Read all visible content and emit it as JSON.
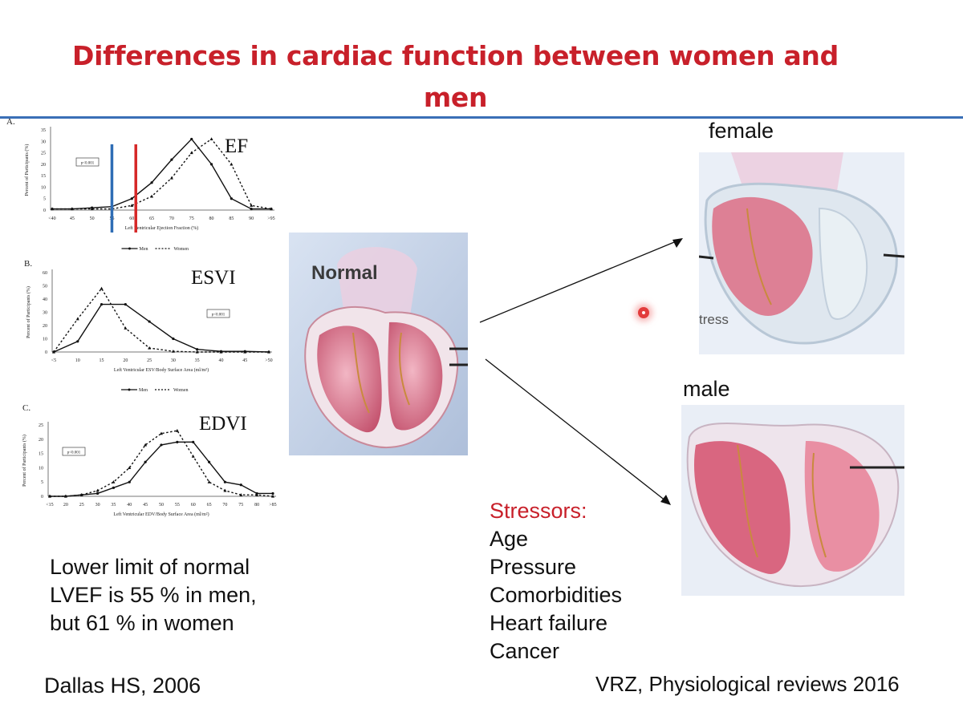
{
  "slide": {
    "title_line1": "Differences in cardiac function between women and",
    "title_line2": "men",
    "note_lines": [
      "Lower limit of normal",
      "LVEF is 55 % in men,",
      "but 61 % in women"
    ],
    "citation_left": "Dallas HS, 2006",
    "citation_right": "VRZ, Physiological reviews 2016",
    "stressors_title": "Stressors:",
    "stressors": [
      "Age",
      "Pressure",
      "Comorbidities",
      "Heart failure",
      "Cancer"
    ],
    "heart_center_label": "Normal",
    "female_label": "female",
    "male_label": "male",
    "female_fragment": "tress"
  },
  "chart_data": [
    {
      "type": "line",
      "panel": "A.",
      "big_label": "EF",
      "xlabel": "Left Ventricular Ejection Fraction (%)",
      "ylabel": "Percent of Participants (%)",
      "categories": [
        "<40",
        "45",
        "50",
        "55",
        "60",
        "65",
        "70",
        "75",
        "80",
        "85",
        "90",
        ">95"
      ],
      "ylim": [
        0,
        35
      ],
      "yticks": [
        "0",
        "5",
        "10",
        "15",
        "20",
        "25",
        "30",
        "35"
      ],
      "pvalue": "p<0.001",
      "legend": [
        "Men",
        "Women"
      ],
      "series": [
        {
          "name": "Men",
          "values": [
            0.5,
            0.5,
            1,
            1.5,
            5,
            12,
            22,
            31,
            20,
            5,
            0.5,
            0.5
          ]
        },
        {
          "name": "Women",
          "values": [
            0.5,
            0.5,
            0.5,
            0.5,
            2,
            6,
            14,
            25,
            31,
            20,
            2,
            0.5
          ]
        }
      ],
      "markers": [
        {
          "value": "55",
          "color": "#2f6db5"
        },
        {
          "value": "61",
          "color": "#d62828"
        }
      ]
    },
    {
      "type": "line",
      "panel": "B.",
      "big_label": "ESVI",
      "xlabel": "Left Ventricular ESV/Body Surface Area (ml/m²)",
      "ylabel": "Percent of Participants (%)",
      "categories": [
        "<5",
        "10",
        "15",
        "20",
        "25",
        "30",
        "35",
        "40",
        "45",
        ">50"
      ],
      "ylim": [
        0,
        60
      ],
      "yticks": [
        "0",
        "10",
        "20",
        "30",
        "40",
        "50",
        "60"
      ],
      "pvalue": "p<0.001",
      "legend": [
        "Men",
        "Women"
      ],
      "series": [
        {
          "name": "Men",
          "values": [
            0,
            8,
            36,
            36,
            23,
            10,
            2,
            0.5,
            0.5,
            0
          ]
        },
        {
          "name": "Women",
          "values": [
            0,
            25,
            48,
            18,
            3,
            0.5,
            0,
            0,
            0,
            0
          ]
        }
      ]
    },
    {
      "type": "line",
      "panel": "C.",
      "big_label": "EDVI",
      "xlabel": "Left Ventricular EDV/Body Surface Area (ml/m²)",
      "ylabel": "Percent of Participants (%)",
      "categories": [
        "<15",
        "20",
        "25",
        "30",
        "35",
        "40",
        "45",
        "50",
        "55",
        "60",
        "65",
        "70",
        "75",
        "80",
        ">85"
      ],
      "ylim": [
        0,
        25
      ],
      "yticks": [
        "0",
        "5",
        "10",
        "15",
        "20",
        "25"
      ],
      "pvalue": "p<0.001",
      "legend": [
        "Men",
        "Women"
      ],
      "series": [
        {
          "name": "Men",
          "values": [
            0,
            0,
            0.5,
            1,
            3,
            5,
            12,
            18,
            19,
            19,
            12,
            5,
            4,
            1,
            1
          ]
        },
        {
          "name": "Women",
          "values": [
            0,
            0,
            0.5,
            2,
            5,
            10,
            18,
            22,
            23,
            14,
            5,
            2,
            0.5,
            0.5,
            0
          ]
        }
      ]
    }
  ]
}
